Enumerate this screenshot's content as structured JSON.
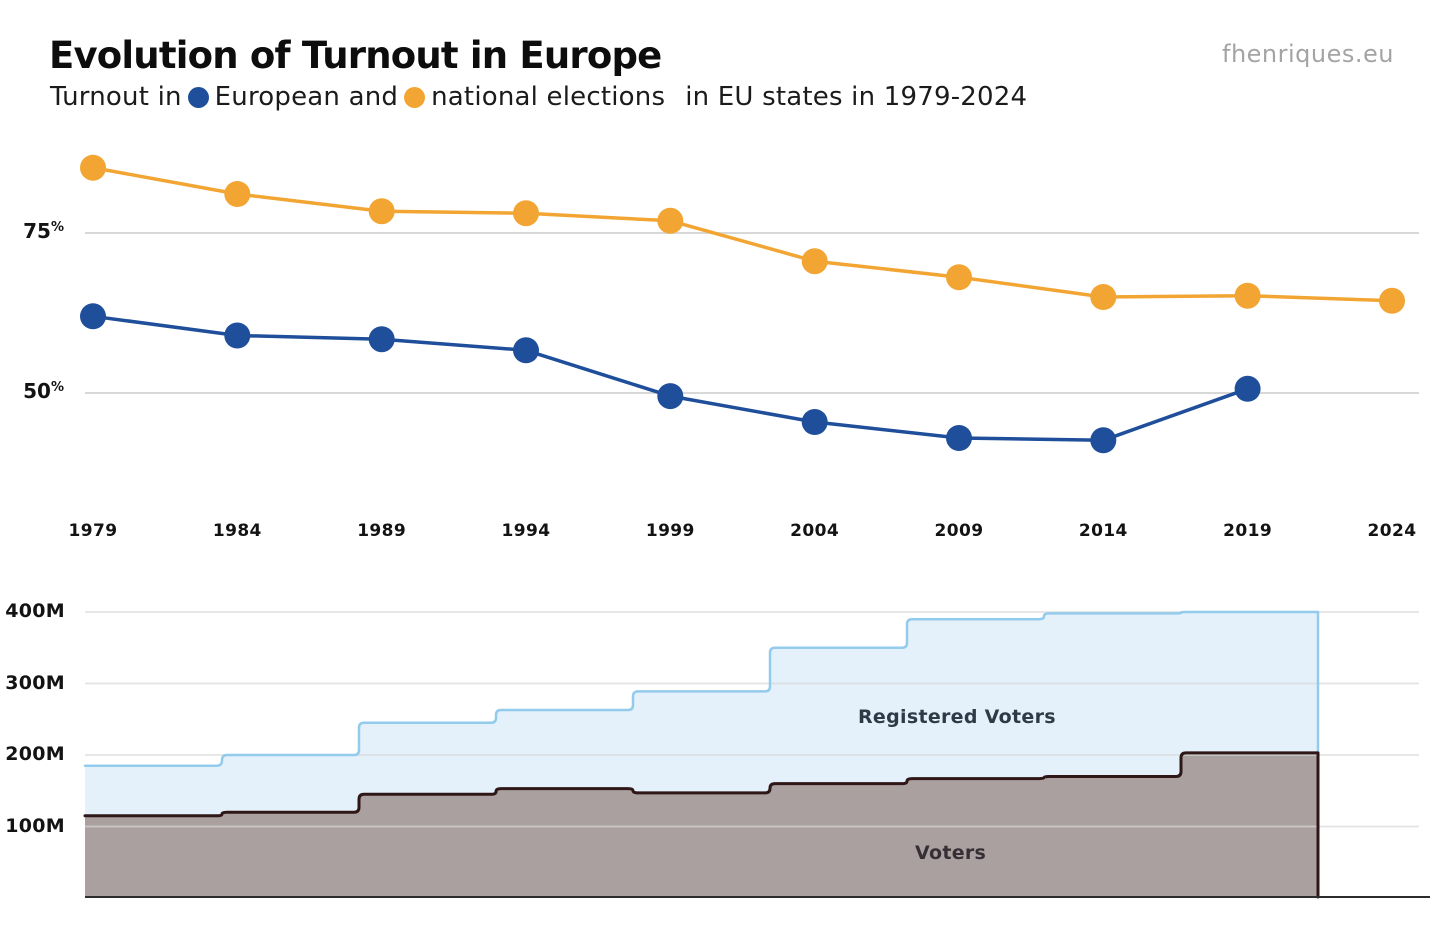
{
  "header": {
    "title": "Evolution of Turnout in Europe",
    "subtitle": {
      "prefix": "Turnout in",
      "european_segment": "European and",
      "national_segment": "national elections",
      "suffix": "in EU states in 1979-2024"
    },
    "watermark": "fhenriques.eu"
  },
  "colors": {
    "european": "#1F4E9B",
    "national": "#F2A533",
    "grid": "#D8D8D8",
    "registered_fill": "#E4F1FA",
    "registered_stroke": "#93CBEC",
    "voters_fill": "#AAA0A0",
    "voters_stroke": "#2F1717",
    "baseline": "#2D2D2D",
    "registered_label": "#2E3A46",
    "voters_label": "#362F36"
  },
  "chart_data": [
    {
      "type": "line",
      "title": "Turnout in European and national elections in EU states 1979-2024",
      "x": [
        "1979",
        "1984",
        "1989",
        "1994",
        "1999",
        "2004",
        "2009",
        "2014",
        "2019",
        "2024"
      ],
      "unit": "%",
      "series": [
        {
          "name": "European elections turnout",
          "color_key": "european",
          "values": [
            61.99,
            58.98,
            58.41,
            56.67,
            49.51,
            45.47,
            42.97,
            42.61,
            50.66,
            null
          ]
        },
        {
          "name": "National elections turnout",
          "color_key": "national",
          "values": [
            85.2,
            81.1,
            78.4,
            78.1,
            76.9,
            70.6,
            68.1,
            65.0,
            65.2,
            64.4
          ]
        }
      ],
      "yticks": [
        {
          "label": "75%",
          "value": 75
        },
        {
          "label": "50%",
          "value": 50
        }
      ],
      "grid": true,
      "legend_position": "in-subtitle"
    },
    {
      "type": "area",
      "step": true,
      "x": [
        "1979",
        "1984",
        "1989",
        "1994",
        "1999",
        "2004",
        "2009",
        "2014",
        "2019"
      ],
      "unit": "millions",
      "series": [
        {
          "name": "Registered Voters",
          "fill_key": "registered_fill",
          "stroke_key": "registered_stroke",
          "values": [
            185,
            200,
            245,
            263,
            289,
            350,
            390,
            398,
            400
          ]
        },
        {
          "name": "Voters",
          "fill_key": "voters_fill",
          "stroke_key": "voters_stroke",
          "values": [
            115,
            120,
            145,
            153,
            147,
            160,
            167,
            170,
            203
          ]
        }
      ],
      "yticks": [
        {
          "label": "400M",
          "value": 400
        },
        {
          "label": "300M",
          "value": 300
        },
        {
          "label": "200M",
          "value": 200
        },
        {
          "label": "100M",
          "value": 100
        }
      ],
      "ylim": [
        0,
        420
      ],
      "grid": true
    }
  ]
}
